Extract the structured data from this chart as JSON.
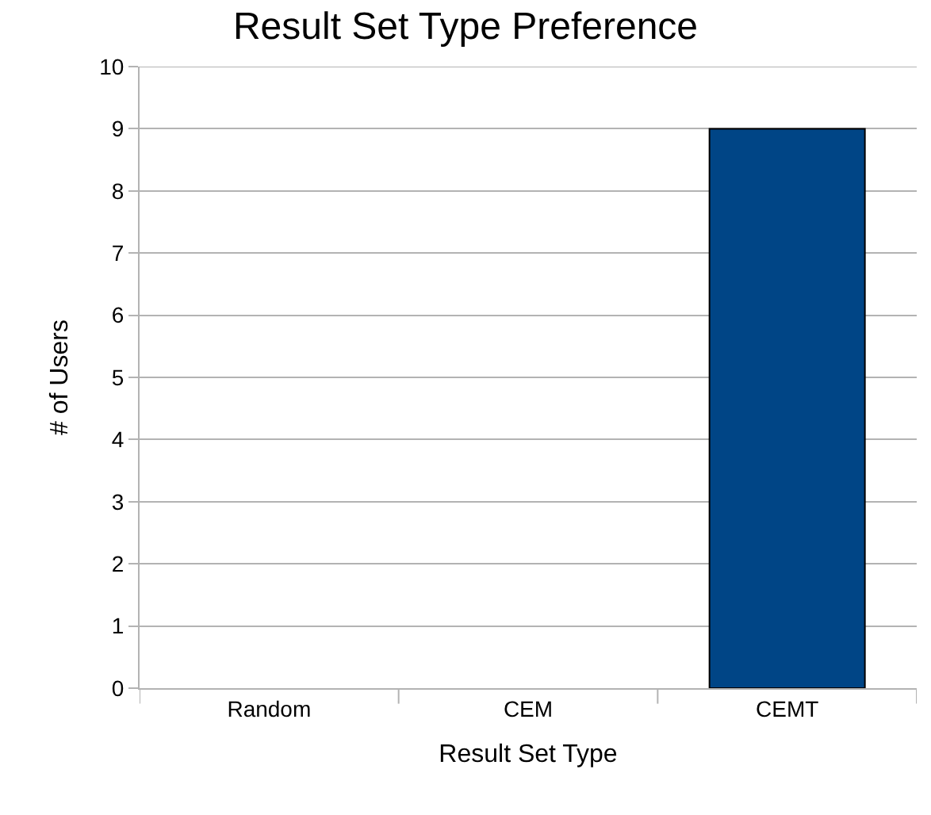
{
  "chart_data": {
    "type": "bar",
    "title": "Result Set Type Preference",
    "xlabel": "Result Set Type",
    "ylabel": "# of Users",
    "categories": [
      "Random",
      "CEM",
      "CEMT"
    ],
    "values": [
      0,
      0,
      9
    ],
    "color": "#004586",
    "ylim": [
      0,
      10
    ],
    "yticks": [
      0,
      1,
      2,
      3,
      4,
      5,
      6,
      7,
      8,
      9,
      10
    ],
    "grid": "y"
  }
}
